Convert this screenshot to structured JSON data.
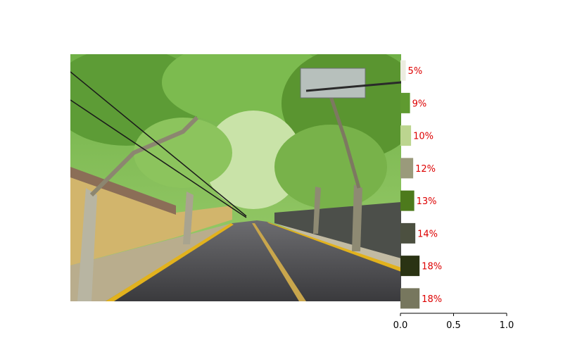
{
  "chart_data": {
    "type": "bar",
    "orientation": "horizontal",
    "values": [
      0.05,
      0.09,
      0.1,
      0.12,
      0.13,
      0.14,
      0.18,
      0.18
    ],
    "labels": [
      "5%",
      "9%",
      "10%",
      "12%",
      "13%",
      "14%",
      "18%",
      "18%"
    ],
    "colors": [
      "#ecece0",
      "#5f9a30",
      "#bcd58f",
      "#9a9a7b",
      "#4d7a1c",
      "#4c5040",
      "#2a3313",
      "#77775e"
    ],
    "xlim": [
      0,
      1
    ],
    "xticks": [
      "0.0",
      "0.5",
      "1.0"
    ],
    "label_color": "#dd0000",
    "grid": false
  },
  "image": {
    "subject": "tree-lined street photo"
  }
}
